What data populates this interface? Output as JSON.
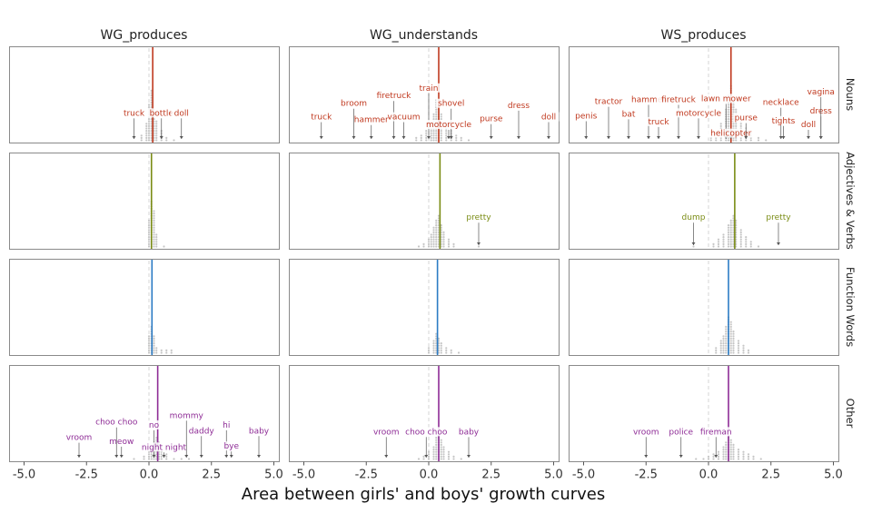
{
  "chart_data": {
    "type": "faceted-dotplot",
    "xlabel": "Area between girls' and boys' growth curves",
    "x_ticks": [
      -5.0,
      -2.5,
      0.0,
      2.5,
      5.0
    ],
    "x_tick_labels": [
      "-5.0",
      "-2.5",
      "0.0",
      "2.5",
      "5.0"
    ],
    "xlim": [
      -5.6,
      5.2
    ],
    "columns": [
      "WG_produces",
      "WG_understands",
      "WS_produces"
    ],
    "rows": [
      {
        "name": "Nouns",
        "color": "#c0391f"
      },
      {
        "name": "Adjectives & Verbs",
        "color": "#7a8c14"
      },
      {
        "name": "Function Words",
        "color": "#2b7bc4"
      },
      {
        "name": "Other",
        "color": "#8e2c96"
      }
    ],
    "panels": [
      {
        "row": 0,
        "col": 0,
        "mean": 0.15,
        "hist": [
          [
            -0.3,
            3
          ],
          [
            -0.1,
            8
          ],
          [
            0.0,
            16
          ],
          [
            0.1,
            22
          ],
          [
            0.2,
            14
          ],
          [
            0.3,
            9
          ],
          [
            0.5,
            5
          ],
          [
            0.7,
            2
          ],
          [
            1.0,
            1
          ]
        ],
        "words": [
          {
            "text": "truck",
            "x": -0.6,
            "ly": 0.72
          },
          {
            "text": "bottle",
            "x": 0.5,
            "ly": 0.72
          },
          {
            "text": "doll",
            "x": 1.3,
            "ly": 0.72
          }
        ]
      },
      {
        "row": 0,
        "col": 1,
        "mean": 0.4,
        "hist": [
          [
            -0.5,
            2
          ],
          [
            -0.3,
            3
          ],
          [
            -0.1,
            5
          ],
          [
            0.1,
            8
          ],
          [
            0.2,
            12
          ],
          [
            0.3,
            18
          ],
          [
            0.4,
            16
          ],
          [
            0.5,
            12
          ],
          [
            0.7,
            8
          ],
          [
            0.9,
            5
          ],
          [
            1.1,
            3
          ],
          [
            1.3,
            2
          ],
          [
            1.6,
            1
          ]
        ],
        "words": [
          {
            "text": "truck",
            "x": -4.3,
            "ly": 0.76
          },
          {
            "text": "broom",
            "x": -3.0,
            "ly": 0.62
          },
          {
            "text": "hammer",
            "x": -2.3,
            "ly": 0.79
          },
          {
            "text": "firetruck",
            "x": -1.4,
            "ly": 0.54
          },
          {
            "text": "vacuum",
            "x": -1.0,
            "ly": 0.76
          },
          {
            "text": "train",
            "x": 0.0,
            "ly": 0.46
          },
          {
            "text": "shovel",
            "x": 0.9,
            "ly": 0.62
          },
          {
            "text": "motorcycle",
            "x": 0.8,
            "ly": 0.84
          },
          {
            "text": "purse",
            "x": 2.5,
            "ly": 0.78
          },
          {
            "text": "dress",
            "x": 3.6,
            "ly": 0.64
          },
          {
            "text": "doll",
            "x": 4.8,
            "ly": 0.76
          }
        ]
      },
      {
        "row": 0,
        "col": 2,
        "mean": 0.9,
        "hist": [
          [
            0.1,
            2
          ],
          [
            0.3,
            4
          ],
          [
            0.5,
            8
          ],
          [
            0.7,
            14
          ],
          [
            0.8,
            20
          ],
          [
            0.9,
            24
          ],
          [
            1.0,
            18
          ],
          [
            1.1,
            14
          ],
          [
            1.3,
            10
          ],
          [
            1.5,
            6
          ],
          [
            1.7,
            4
          ],
          [
            2.0,
            2
          ],
          [
            2.3,
            1
          ]
        ],
        "words": [
          {
            "text": "penis",
            "x": -4.9,
            "ly": 0.75
          },
          {
            "text": "tractor",
            "x": -4.0,
            "ly": 0.6
          },
          {
            "text": "bat",
            "x": -3.2,
            "ly": 0.73
          },
          {
            "text": "hammer",
            "x": -2.4,
            "ly": 0.58
          },
          {
            "text": "truck",
            "x": -2.0,
            "ly": 0.81
          },
          {
            "text": "firetruck",
            "x": -1.2,
            "ly": 0.58
          },
          {
            "text": "motorcycle",
            "x": -0.4,
            "ly": 0.72
          },
          {
            "text": "lawn mower",
            "x": 0.7,
            "ly": 0.57
          },
          {
            "text": "helicopter",
            "x": 0.9,
            "ly": 0.93
          },
          {
            "text": "purse",
            "x": 1.5,
            "ly": 0.77
          },
          {
            "text": "necklace",
            "x": 2.9,
            "ly": 0.61
          },
          {
            "text": "tights",
            "x": 3.0,
            "ly": 0.8
          },
          {
            "text": "doll",
            "x": 4.0,
            "ly": 0.84
          },
          {
            "text": "dress",
            "x": 4.5,
            "ly": 0.7
          },
          {
            "text": "vagina",
            "x": 4.5,
            "ly": 0.5
          }
        ]
      },
      {
        "row": 1,
        "col": 0,
        "mean": 0.1,
        "hist": [
          [
            0.0,
            12
          ],
          [
            0.1,
            20
          ],
          [
            0.2,
            16
          ],
          [
            0.3,
            6
          ],
          [
            0.6,
            1
          ]
        ],
        "words": []
      },
      {
        "row": 1,
        "col": 1,
        "mean": 0.45,
        "hist": [
          [
            -0.4,
            1
          ],
          [
            -0.2,
            2
          ],
          [
            0.0,
            4
          ],
          [
            0.1,
            6
          ],
          [
            0.2,
            9
          ],
          [
            0.3,
            12
          ],
          [
            0.4,
            14
          ],
          [
            0.5,
            10
          ],
          [
            0.6,
            7
          ],
          [
            0.8,
            4
          ],
          [
            1.0,
            2
          ],
          [
            2.0,
            1
          ]
        ],
        "words": [
          {
            "text": "pretty",
            "x": 2.0,
            "ly": 0.7
          }
        ]
      },
      {
        "row": 1,
        "col": 2,
        "mean": 1.05,
        "hist": [
          [
            -0.6,
            1
          ],
          [
            0.2,
            2
          ],
          [
            0.4,
            4
          ],
          [
            0.6,
            6
          ],
          [
            0.8,
            10
          ],
          [
            0.9,
            12
          ],
          [
            1.0,
            14
          ],
          [
            1.1,
            12
          ],
          [
            1.3,
            8
          ],
          [
            1.5,
            5
          ],
          [
            1.7,
            3
          ],
          [
            2.0,
            1
          ]
        ],
        "words": [
          {
            "text": "dump",
            "x": -0.6,
            "ly": 0.7
          },
          {
            "text": "pretty",
            "x": 2.8,
            "ly": 0.7
          }
        ]
      },
      {
        "row": 2,
        "col": 0,
        "mean": 0.12,
        "hist": [
          [
            0.0,
            8
          ],
          [
            0.1,
            12
          ],
          [
            0.2,
            8
          ],
          [
            0.3,
            3
          ],
          [
            0.5,
            2
          ],
          [
            0.7,
            2
          ],
          [
            0.9,
            2
          ]
        ],
        "words": []
      },
      {
        "row": 2,
        "col": 1,
        "mean": 0.35,
        "hist": [
          [
            0.0,
            3
          ],
          [
            0.2,
            6
          ],
          [
            0.3,
            9
          ],
          [
            0.4,
            7
          ],
          [
            0.5,
            5
          ],
          [
            0.7,
            3
          ],
          [
            0.9,
            2
          ],
          [
            1.2,
            1
          ]
        ],
        "words": []
      },
      {
        "row": 2,
        "col": 2,
        "mean": 0.8,
        "hist": [
          [
            0.3,
            3
          ],
          [
            0.5,
            6
          ],
          [
            0.6,
            8
          ],
          [
            0.7,
            12
          ],
          [
            0.8,
            16
          ],
          [
            0.9,
            14
          ],
          [
            1.0,
            10
          ],
          [
            1.2,
            6
          ],
          [
            1.4,
            4
          ],
          [
            1.6,
            2
          ]
        ],
        "words": []
      },
      {
        "row": 3,
        "col": 0,
        "mean": 0.35,
        "hist": [
          [
            -0.6,
            1
          ],
          [
            -0.2,
            2
          ],
          [
            0.0,
            4
          ],
          [
            0.1,
            6
          ],
          [
            0.2,
            8
          ],
          [
            0.3,
            10
          ],
          [
            0.4,
            8
          ],
          [
            0.5,
            6
          ],
          [
            0.7,
            3
          ],
          [
            1.0,
            1
          ],
          [
            1.3,
            1
          ],
          [
            1.6,
            1
          ]
        ],
        "words": [
          {
            "text": "vroom",
            "x": -2.8,
            "ly": 0.78
          },
          {
            "text": "meow",
            "x": -1.1,
            "ly": 0.82
          },
          {
            "text": "choo choo",
            "x": -1.3,
            "ly": 0.62
          },
          {
            "text": "no",
            "x": 0.2,
            "ly": 0.65
          },
          {
            "text": "night night",
            "x": 0.6,
            "ly": 0.88
          },
          {
            "text": "mommy",
            "x": 1.5,
            "ly": 0.55
          },
          {
            "text": "daddy",
            "x": 2.1,
            "ly": 0.71
          },
          {
            "text": "hi",
            "x": 3.1,
            "ly": 0.65
          },
          {
            "text": "bye",
            "x": 3.3,
            "ly": 0.87
          },
          {
            "text": "baby",
            "x": 4.4,
            "ly": 0.71
          }
        ]
      },
      {
        "row": 3,
        "col": 1,
        "mean": 0.4,
        "hist": [
          [
            -0.4,
            1
          ],
          [
            -0.2,
            2
          ],
          [
            0.0,
            4
          ],
          [
            0.2,
            6
          ],
          [
            0.3,
            10
          ],
          [
            0.4,
            12
          ],
          [
            0.5,
            9
          ],
          [
            0.6,
            6
          ],
          [
            0.8,
            4
          ],
          [
            1.0,
            2
          ],
          [
            1.3,
            1
          ]
        ],
        "words": [
          {
            "text": "vroom",
            "x": -1.7,
            "ly": 0.72
          },
          {
            "text": "choo choo",
            "x": -0.1,
            "ly": 0.72
          },
          {
            "text": "baby",
            "x": 1.6,
            "ly": 0.72
          }
        ]
      },
      {
        "row": 3,
        "col": 2,
        "mean": 0.8,
        "hist": [
          [
            -0.5,
            1
          ],
          [
            -0.2,
            1
          ],
          [
            0.0,
            2
          ],
          [
            0.2,
            3
          ],
          [
            0.4,
            4
          ],
          [
            0.6,
            6
          ],
          [
            0.7,
            8
          ],
          [
            0.8,
            10
          ],
          [
            0.9,
            9
          ],
          [
            1.0,
            7
          ],
          [
            1.2,
            5
          ],
          [
            1.4,
            4
          ],
          [
            1.6,
            3
          ],
          [
            1.8,
            2
          ],
          [
            2.1,
            1
          ]
        ],
        "words": [
          {
            "text": "vroom",
            "x": -2.5,
            "ly": 0.72
          },
          {
            "text": "police",
            "x": -1.1,
            "ly": 0.72
          },
          {
            "text": "fireman",
            "x": 0.3,
            "ly": 0.72
          }
        ]
      }
    ]
  }
}
